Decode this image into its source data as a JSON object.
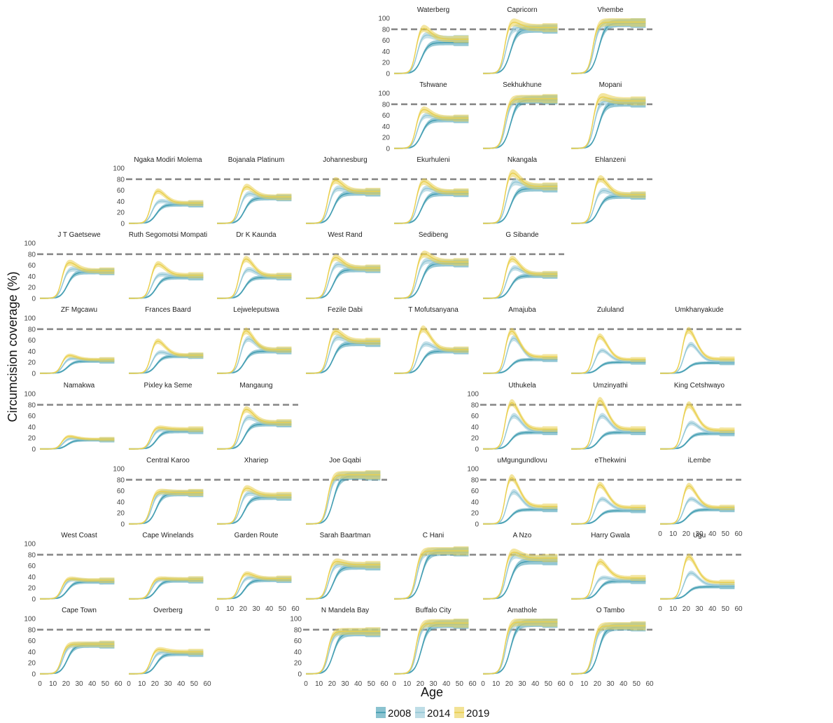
{
  "chart_data": {
    "type": "line",
    "ylabel": "Circumcision coverage (%)",
    "xlabel": "Age",
    "x_ticks": [
      0,
      10,
      20,
      30,
      40,
      50,
      60
    ],
    "y_ticks": [
      0,
      20,
      40,
      60,
      80,
      100
    ],
    "xlim": [
      0,
      60
    ],
    "ylim": [
      0,
      100
    ],
    "target_line": 80,
    "colors": {
      "2008": "#3E9BB0",
      "2014": "#93C7D6",
      "2019": "#E9CF4E",
      "target": "#888888"
    },
    "legend": [
      {
        "label": "2008",
        "color": "#3E9BB0"
      },
      {
        "label": "2014",
        "color": "#93C7D6"
      },
      {
        "label": "2019",
        "color": "#E9CF4E"
      }
    ],
    "panels": [
      {
        "name": "Waterberg",
        "row": 0,
        "col": 4,
        "curve": "peak",
        "plateau": [
          56,
          63,
          62
        ],
        "peak": [
          null,
          72,
          86
        ],
        "xaxis": false
      },
      {
        "name": "Capricorn",
        "row": 0,
        "col": 5,
        "curve": "peak",
        "plateau": [
          80,
          82,
          83
        ],
        "peak": [
          null,
          84,
          96
        ],
        "xaxis": false
      },
      {
        "name": "Vhembe",
        "row": 0,
        "col": 6,
        "curve": "plateau",
        "plateau": [
          91,
          92,
          93
        ],
        "peak": [
          null,
          null,
          null
        ],
        "xaxis": false
      },
      {
        "name": "Tshwane",
        "row": 1,
        "col": 4,
        "curve": "peak",
        "plateau": [
          52,
          54,
          55
        ],
        "peak": [
          null,
          62,
          74
        ],
        "xaxis": false
      },
      {
        "name": "Sekhukhune",
        "row": 1,
        "col": 5,
        "curve": "plateau",
        "plateau": [
          88,
          89,
          90
        ],
        "peak": [
          null,
          null,
          null
        ],
        "xaxis": false
      },
      {
        "name": "Mopani",
        "row": 1,
        "col": 6,
        "curve": "peak",
        "plateau": [
          82,
          84,
          86
        ],
        "peak": [
          null,
          87,
          96
        ],
        "xaxis": false
      },
      {
        "name": "Ngaka Modiri Molema",
        "row": 2,
        "col": 1,
        "curve": "peak",
        "plateau": [
          34,
          36,
          37
        ],
        "peak": [
          null,
          42,
          62
        ],
        "xaxis": false
      },
      {
        "name": "Bojanala Platinum",
        "row": 2,
        "col": 2,
        "curve": "peak",
        "plateau": [
          46,
          47,
          48
        ],
        "peak": [
          null,
          56,
          70
        ],
        "xaxis": false
      },
      {
        "name": "Johannesburg",
        "row": 2,
        "col": 3,
        "curve": "peak",
        "plateau": [
          55,
          57,
          58
        ],
        "peak": [
          null,
          66,
          82
        ],
        "xaxis": false
      },
      {
        "name": "Ekurhuleni",
        "row": 2,
        "col": 4,
        "curve": "peak",
        "plateau": [
          54,
          56,
          57
        ],
        "peak": [
          null,
          66,
          80
        ],
        "xaxis": false
      },
      {
        "name": "Nkangala",
        "row": 2,
        "col": 5,
        "curve": "peak",
        "plateau": [
          63,
          66,
          67
        ],
        "peak": [
          null,
          78,
          96
        ],
        "xaxis": false
      },
      {
        "name": "Ehlanzeni",
        "row": 2,
        "col": 6,
        "curve": "peak",
        "plateau": [
          49,
          51,
          52
        ],
        "peak": [
          null,
          62,
          86
        ],
        "xaxis": false
      },
      {
        "name": "J T Gaetsewe",
        "row": 3,
        "col": 0,
        "curve": "peak",
        "plateau": [
          48,
          49,
          50
        ],
        "peak": [
          null,
          55,
          68
        ],
        "xaxis": false
      },
      {
        "name": "Ruth Segomotsi Mompati",
        "row": 3,
        "col": 1,
        "curve": "peak",
        "plateau": [
          38,
          40,
          42
        ],
        "peak": [
          null,
          45,
          66
        ],
        "xaxis": false
      },
      {
        "name": "Dr K Kaunda",
        "row": 3,
        "col": 2,
        "curve": "peak",
        "plateau": [
          38,
          40,
          41
        ],
        "peak": [
          null,
          55,
          76
        ],
        "xaxis": false
      },
      {
        "name": "West Rand",
        "row": 3,
        "col": 3,
        "curve": "peak",
        "plateau": [
          52,
          54,
          55
        ],
        "peak": [
          null,
          64,
          78
        ],
        "xaxis": false
      },
      {
        "name": "Sedibeng",
        "row": 3,
        "col": 4,
        "curve": "peak",
        "plateau": [
          63,
          65,
          66
        ],
        "peak": [
          null,
          70,
          84
        ],
        "xaxis": false
      },
      {
        "name": "G Sibande",
        "row": 3,
        "col": 5,
        "curve": "peak",
        "plateau": [
          41,
          43,
          44
        ],
        "peak": [
          null,
          58,
          76
        ],
        "xaxis": false
      },
      {
        "name": "ZF Mgcawu",
        "row": 4,
        "col": 0,
        "curve": "peak",
        "plateau": [
          22,
          24,
          25
        ],
        "peak": [
          null,
          28,
          34
        ],
        "xaxis": false
      },
      {
        "name": "Frances Baard",
        "row": 4,
        "col": 1,
        "curve": "peak",
        "plateau": [
          31,
          32,
          33
        ],
        "peak": [
          null,
          40,
          62
        ],
        "xaxis": false
      },
      {
        "name": "Lejweleputswa",
        "row": 4,
        "col": 2,
        "curve": "peak",
        "plateau": [
          40,
          42,
          43
        ],
        "peak": [
          null,
          66,
          82
        ],
        "xaxis": false
      },
      {
        "name": "Fezile Dabi",
        "row": 4,
        "col": 3,
        "curve": "peak",
        "plateau": [
          54,
          56,
          58
        ],
        "peak": [
          null,
          68,
          80
        ],
        "xaxis": false
      },
      {
        "name": "T Mofutsanyana",
        "row": 4,
        "col": 4,
        "curve": "peak",
        "plateau": [
          40,
          42,
          43
        ],
        "peak": [
          null,
          56,
          86
        ],
        "xaxis": false
      },
      {
        "name": "Amajuba",
        "row": 4,
        "col": 5,
        "curve": "peak",
        "plateau": [
          25,
          26,
          30
        ],
        "peak": [
          null,
          68,
          82
        ],
        "xaxis": false
      },
      {
        "name": "Zululand",
        "row": 4,
        "col": 6,
        "curve": "peak",
        "plateau": [
          20,
          22,
          25
        ],
        "peak": [
          null,
          44,
          72
        ],
        "xaxis": false
      },
      {
        "name": "Umkhanyakude",
        "row": 4,
        "col": 7,
        "curve": "peak",
        "plateau": [
          19,
          22,
          26
        ],
        "peak": [
          null,
          56,
          84
        ],
        "xaxis": false
      },
      {
        "name": "Namakwa",
        "row": 5,
        "col": 0,
        "curve": "peak",
        "plateau": [
          16,
          17,
          18
        ],
        "peak": [
          null,
          20,
          24
        ],
        "xaxis": false
      },
      {
        "name": "Pixley ka Seme",
        "row": 5,
        "col": 1,
        "curve": "peak",
        "plateau": [
          32,
          34,
          36
        ],
        "peak": [
          null,
          36,
          40
        ],
        "xaxis": false
      },
      {
        "name": "Mangaung",
        "row": 5,
        "col": 2,
        "curve": "peak",
        "plateau": [
          45,
          47,
          48
        ],
        "peak": [
          null,
          60,
          76
        ],
        "xaxis": false
      },
      {
        "name": "Uthukela",
        "row": 5,
        "col": 5,
        "curve": "peak",
        "plateau": [
          30,
          32,
          36
        ],
        "peak": [
          null,
          64,
          90
        ],
        "xaxis": false
      },
      {
        "name": "Umzinyathi",
        "row": 5,
        "col": 6,
        "curve": "peak",
        "plateau": [
          30,
          32,
          36
        ],
        "peak": [
          null,
          64,
          94
        ],
        "xaxis": false
      },
      {
        "name": "King Cetshwayo",
        "row": 5,
        "col": 7,
        "curve": "peak",
        "plateau": [
          28,
          30,
          34
        ],
        "peak": [
          null,
          50,
          86
        ],
        "xaxis": false
      },
      {
        "name": "Central Karoo",
        "row": 6,
        "col": 1,
        "curve": "peak",
        "plateau": [
          55,
          56,
          57
        ],
        "peak": [
          null,
          58,
          60
        ],
        "xaxis": false
      },
      {
        "name": "Xhariep",
        "row": 6,
        "col": 2,
        "curve": "peak",
        "plateau": [
          48,
          50,
          52
        ],
        "peak": [
          null,
          58,
          68
        ],
        "xaxis": false
      },
      {
        "name": "Joe Gqabi",
        "row": 6,
        "col": 3,
        "curve": "plateau",
        "plateau": [
          87,
          88,
          89
        ],
        "peak": [
          null,
          null,
          null
        ],
        "xaxis": false
      },
      {
        "name": "uMgungundlovu",
        "row": 6,
        "col": 5,
        "curve": "peak",
        "plateau": [
          26,
          28,
          32
        ],
        "peak": [
          null,
          62,
          90
        ],
        "xaxis": false
      },
      {
        "name": "eThekwini",
        "row": 6,
        "col": 6,
        "curve": "peak",
        "plateau": [
          24,
          26,
          30
        ],
        "peak": [
          null,
          48,
          76
        ],
        "xaxis": false
      },
      {
        "name": "iLembe",
        "row": 6,
        "col": 7,
        "curve": "peak",
        "plateau": [
          26,
          28,
          30
        ],
        "peak": [
          null,
          48,
          74
        ],
        "xaxis": true
      },
      {
        "name": "West Coast",
        "row": 7,
        "col": 0,
        "curve": "peak",
        "plateau": [
          31,
          33,
          34
        ],
        "peak": [
          null,
          36,
          38
        ],
        "xaxis": false
      },
      {
        "name": "Cape Winelands",
        "row": 7,
        "col": 1,
        "curve": "peak",
        "plateau": [
          33,
          35,
          36
        ],
        "peak": [
          null,
          36,
          38
        ],
        "xaxis": false
      },
      {
        "name": "Garden Route",
        "row": 7,
        "col": 2,
        "curve": "peak",
        "plateau": [
          34,
          36,
          37
        ],
        "peak": [
          null,
          40,
          48
        ],
        "xaxis": true
      },
      {
        "name": "Sarah Baartman",
        "row": 7,
        "col": 3,
        "curve": "peak",
        "plateau": [
          58,
          60,
          62
        ],
        "peak": [
          null,
          64,
          70
        ],
        "xaxis": false
      },
      {
        "name": "C Hani",
        "row": 7,
        "col": 4,
        "curve": "plateau",
        "plateau": [
          85,
          86,
          87
        ],
        "peak": [
          null,
          null,
          null
        ],
        "xaxis": false
      },
      {
        "name": "A Nzo",
        "row": 7,
        "col": 5,
        "curve": "peak",
        "plateau": [
          68,
          72,
          74
        ],
        "peak": [
          null,
          82,
          88
        ],
        "xaxis": false
      },
      {
        "name": "Harry Gwala",
        "row": 7,
        "col": 6,
        "curve": "peak",
        "plateau": [
          32,
          34,
          38
        ],
        "peak": [
          null,
          40,
          72
        ],
        "xaxis": false
      },
      {
        "name": "Ugu",
        "row": 7,
        "col": 7,
        "curve": "peak",
        "plateau": [
          22,
          25,
          30
        ],
        "peak": [
          null,
          50,
          82
        ],
        "xaxis": true
      },
      {
        "name": "Cape Town",
        "row": 8,
        "col": 0,
        "curve": "plateau",
        "plateau": [
          52,
          53,
          54
        ],
        "peak": [
          null,
          null,
          null
        ],
        "xaxis": true
      },
      {
        "name": "Overberg",
        "row": 8,
        "col": 1,
        "curve": "peak",
        "plateau": [
          36,
          38,
          40
        ],
        "peak": [
          null,
          40,
          46
        ],
        "xaxis": true
      },
      {
        "name": "N Mandela Bay",
        "row": 8,
        "col": 3,
        "curve": "plateau",
        "plateau": [
          74,
          76,
          77
        ],
        "peak": [
          null,
          null,
          null
        ],
        "xaxis": true
      },
      {
        "name": "Buffalo City",
        "row": 8,
        "col": 4,
        "curve": "plateau",
        "plateau": [
          90,
          91,
          92
        ],
        "peak": [
          null,
          null,
          null
        ],
        "xaxis": true
      },
      {
        "name": "Amathole",
        "row": 8,
        "col": 5,
        "curve": "plateau",
        "plateau": [
          92,
          93,
          94
        ],
        "peak": [
          null,
          null,
          null
        ],
        "xaxis": true
      },
      {
        "name": "O Tambo",
        "row": 8,
        "col": 6,
        "curve": "plateau",
        "plateau": [
          85,
          86,
          87
        ],
        "peak": [
          null,
          null,
          null
        ],
        "xaxis": true
      }
    ]
  }
}
